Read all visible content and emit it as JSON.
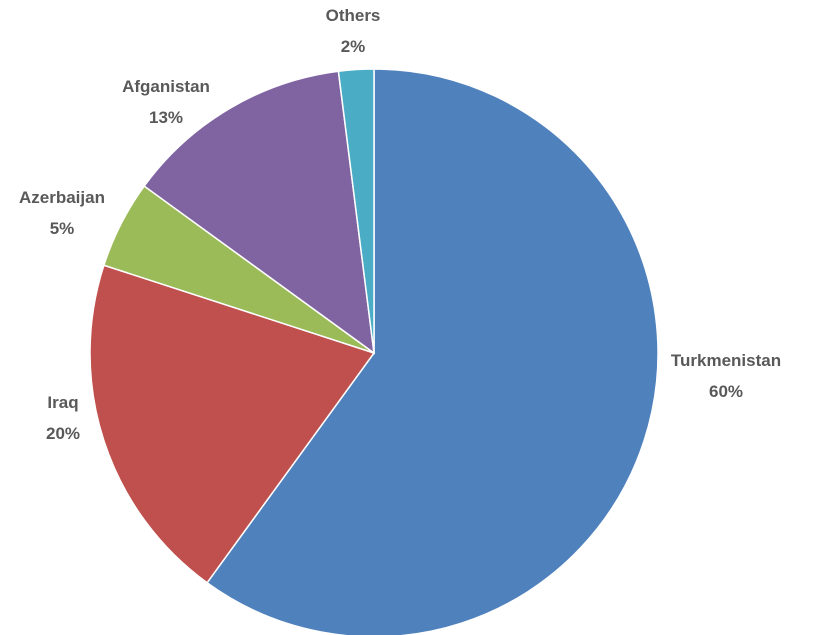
{
  "chart_data": {
    "type": "pie",
    "title": "",
    "start_angle_deg": 0,
    "direction": "clockwise",
    "legend": "none",
    "slices": [
      {
        "category": "Turkmenistan",
        "value": 60,
        "label": "60%",
        "color": "#4F81BD"
      },
      {
        "category": "Iraq",
        "value": 20,
        "label": "20%",
        "color": "#C0504D"
      },
      {
        "category": "Azerbaijan",
        "value": 5,
        "label": "5%",
        "color": "#9BBB59"
      },
      {
        "category": "Afganistan",
        "value": 13,
        "label": "13%",
        "color": "#8064A2"
      },
      {
        "category": "Others",
        "value": 2,
        "label": "2%",
        "color": "#4BACC6"
      }
    ]
  }
}
